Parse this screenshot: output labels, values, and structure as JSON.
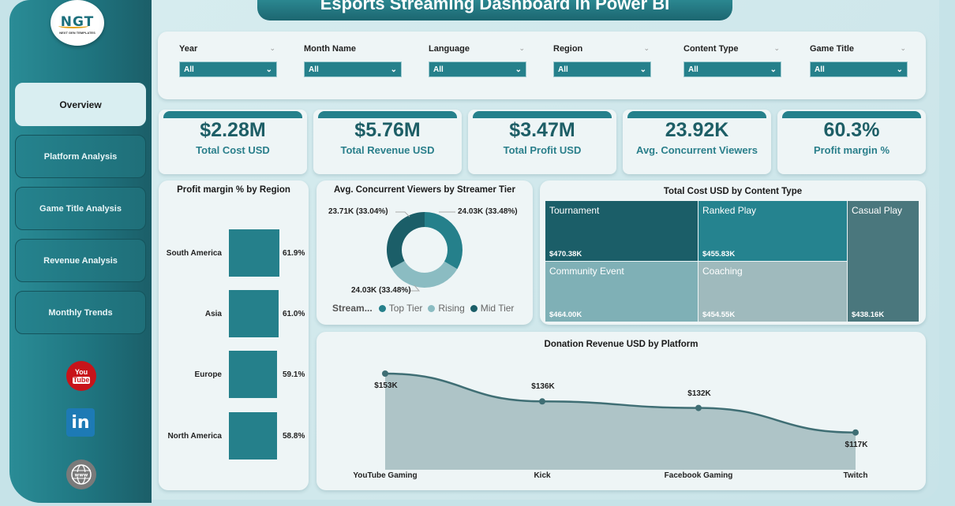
{
  "title": "Esports Streaming Dashboard in Power BI",
  "logo": {
    "text": "NGT",
    "subtitle": "NEXT GEN TEMPLATES"
  },
  "nav": [
    {
      "label": "Overview",
      "active": true
    },
    {
      "label": "Platform Analysis",
      "active": false
    },
    {
      "label": "Game Title Analysis",
      "active": false
    },
    {
      "label": "Revenue Analysis",
      "active": false
    },
    {
      "label": "Monthly Trends",
      "active": false
    }
  ],
  "social": [
    {
      "icon": "youtube-icon",
      "label_top": "You",
      "label_bottom": "Tube"
    },
    {
      "icon": "linkedin-icon",
      "label": "in"
    },
    {
      "icon": "globe-www-icon",
      "label": "www"
    }
  ],
  "filters": [
    {
      "label": "Year",
      "value": "All"
    },
    {
      "label": "Month Name",
      "value": "All"
    },
    {
      "label": "Language",
      "value": "All"
    },
    {
      "label": "Region",
      "value": "All"
    },
    {
      "label": "Content Type",
      "value": "All"
    },
    {
      "label": "Game Title",
      "value": "All"
    }
  ],
  "kpis": [
    {
      "value": "$2.28M",
      "label": "Total Cost USD"
    },
    {
      "value": "$5.76M",
      "label": "Total Revenue USD"
    },
    {
      "value": "$3.47M",
      "label": "Total Profit USD"
    },
    {
      "value": "23.92K",
      "label": "Avg. Concurrent Viewers"
    },
    {
      "value": "60.3%",
      "label": "Profit margin %"
    }
  ],
  "colors": {
    "teal": "#25808b",
    "dark_teal": "#1b5e68",
    "light_teal": "#8bbcc2",
    "slate": "#4a7a80",
    "area_fill": "#aec4c7",
    "line": "#3f6e74"
  },
  "chart_data": [
    {
      "type": "bar",
      "title": "Profit margin % by Region",
      "categories": [
        "South America",
        "Asia",
        "Europe",
        "North America"
      ],
      "values": [
        61.9,
        61.0,
        59.1,
        58.8
      ],
      "value_labels": [
        "61.9%",
        "61.0%",
        "59.1%",
        "58.8%"
      ],
      "orientation": "horizontal"
    },
    {
      "type": "pie",
      "title": "Avg. Concurrent Viewers by Streamer Tier",
      "legend_title": "Stream...",
      "categories": [
        "Top Tier",
        "Rising",
        "Mid Tier"
      ],
      "values": [
        24.03,
        24.03,
        23.71
      ],
      "labels": [
        "24.03K (33.48%)",
        "24.03K (33.48%)",
        "23.71K (33.04%)"
      ],
      "colors": [
        "#25808b",
        "#8bbcc2",
        "#1b5e68"
      ],
      "donut": true
    },
    {
      "type": "treemap",
      "title": "Total Cost USD by Content Type",
      "categories": [
        "Tournament",
        "Community Event",
        "Ranked Play",
        "Coaching",
        "Casual Play"
      ],
      "values": [
        470.38,
        464.0,
        455.83,
        454.55,
        438.16
      ],
      "value_labels": [
        "$470.38K",
        "$464.00K",
        "$455.83K",
        "$454.55K",
        "$438.16K"
      ],
      "colors": [
        "#1b5e68",
        "#7fb0b6",
        "#25838f",
        "#9fbabd",
        "#4a777d"
      ]
    },
    {
      "type": "area",
      "title": "Donation Revenue USD by Platform",
      "categories": [
        "YouTube Gaming",
        "Kick",
        "Facebook Gaming",
        "Twitch"
      ],
      "values": [
        153,
        136,
        132,
        117
      ],
      "value_labels": [
        "$153K",
        "$136K",
        "$132K",
        "$117K"
      ],
      "ylim": [
        0,
        153
      ]
    }
  ]
}
